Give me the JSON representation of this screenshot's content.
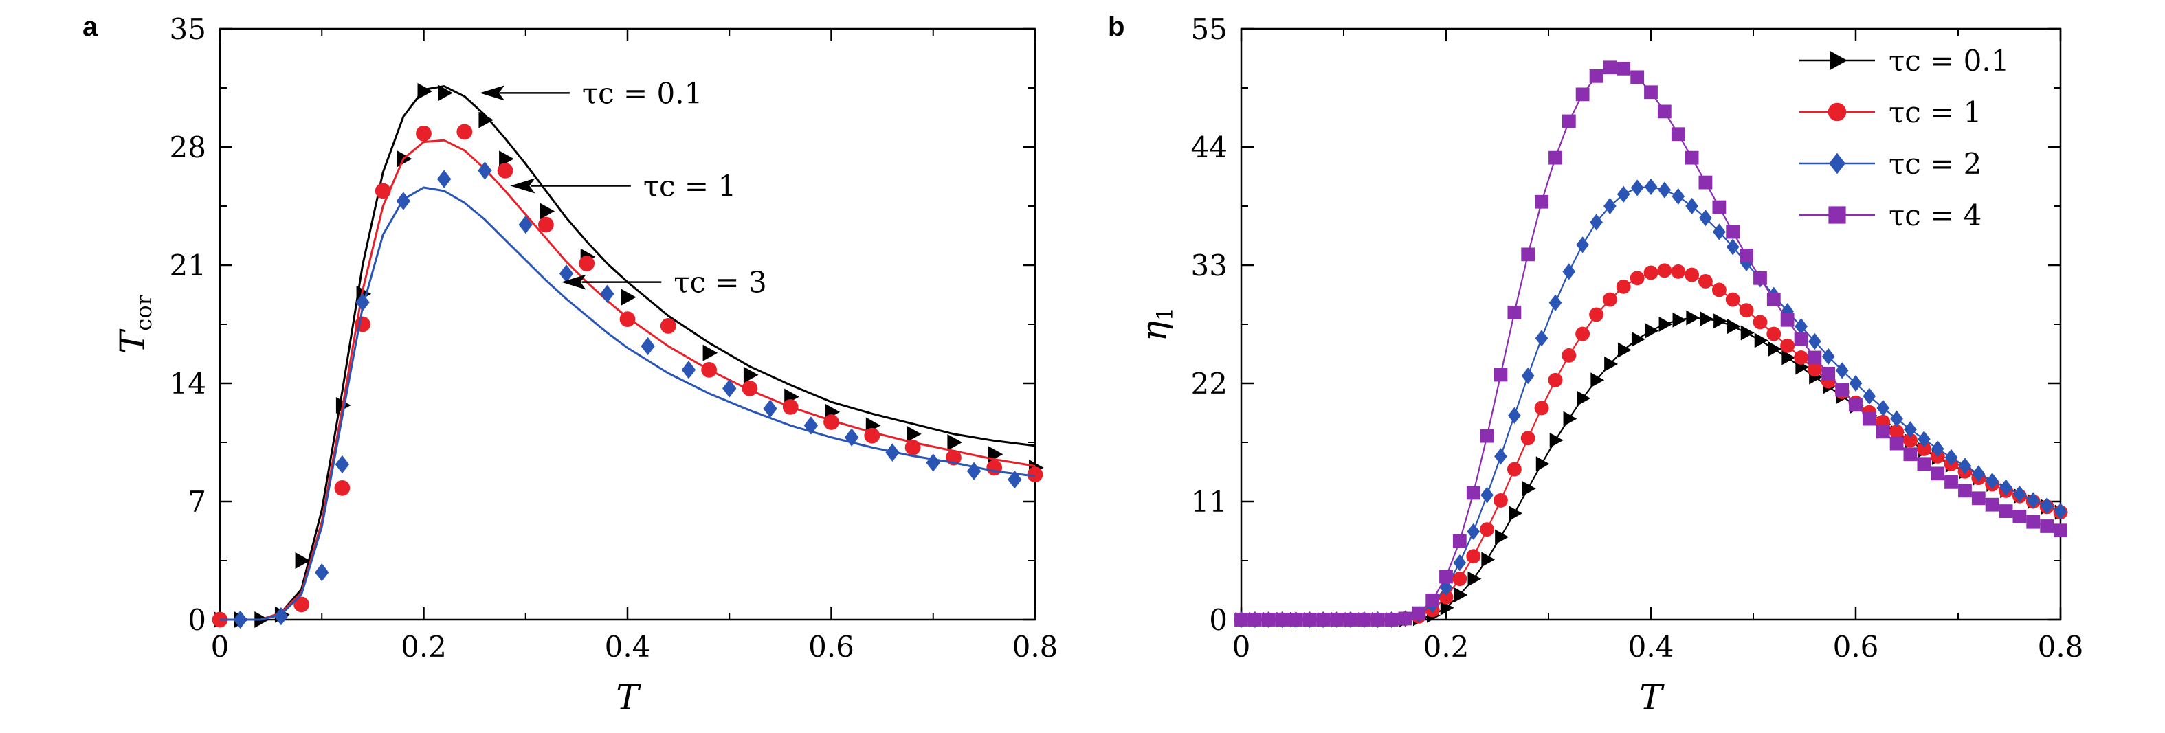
{
  "chart_data": [
    {
      "type": "line",
      "panel": "a",
      "xlabel": "T",
      "ylabel": "T",
      "ylabel_sub": "cor",
      "xlim": [
        0,
        0.8
      ],
      "ylim": [
        0,
        35
      ],
      "xticks": [
        "0",
        "0.2",
        "0.4",
        "0.6",
        "0.8"
      ],
      "yticks": [
        "0",
        "7",
        "14",
        "21",
        "28",
        "35"
      ],
      "grid": false,
      "annotations": [
        {
          "text": "τc = 0.1",
          "x": 0.255,
          "y": 31.2,
          "text_x": 0.35
        },
        {
          "text": "τc = 1",
          "x": 0.285,
          "y": 25.7,
          "text_x": 0.41
        },
        {
          "text": "τc = 3",
          "x": 0.335,
          "y": 20.0,
          "text_x": 0.44
        }
      ],
      "series": [
        {
          "color": "#000000",
          "marker": "triangle",
          "line": {
            "x": [
              0,
              0.02,
              0.04,
              0.06,
              0.08,
              0.1,
              0.12,
              0.14,
              0.16,
              0.18,
              0.2,
              0.22,
              0.24,
              0.26,
              0.28,
              0.3,
              0.32,
              0.34,
              0.36,
              0.38,
              0.4,
              0.44,
              0.48,
              0.52,
              0.56,
              0.6,
              0.64,
              0.68,
              0.72,
              0.76,
              0.8
            ],
            "y": [
              0,
              0,
              0,
              0.4,
              1.8,
              6.5,
              13.5,
              21.0,
              26.5,
              29.8,
              31.4,
              31.6,
              31.0,
              29.9,
              28.5,
              27.0,
              25.4,
              23.8,
              22.4,
              21.1,
              20.0,
              18.0,
              16.4,
              15.0,
              13.9,
              12.9,
              12.2,
              11.6,
              11.0,
              10.6,
              10.3
            ]
          },
          "markers": {
            "x": [
              0,
              0.02,
              0.04,
              0.06,
              0.08,
              0.12,
              0.14,
              0.18,
              0.2,
              0.22,
              0.26,
              0.28,
              0.32,
              0.36,
              0.4,
              0.48,
              0.52,
              0.56,
              0.6,
              0.64,
              0.68,
              0.72,
              0.76,
              0.8
            ],
            "y": [
              0,
              0,
              0,
              0.3,
              3.5,
              12.7,
              19.3,
              27.3,
              31.3,
              31.2,
              29.6,
              27.3,
              24.2,
              21.5,
              19.1,
              15.8,
              14.5,
              13.2,
              12.3,
              11.5,
              11.0,
              10.5,
              9.8,
              9.0
            ]
          }
        },
        {
          "color": "#e8202a",
          "marker": "circle",
          "line": {
            "x": [
              0,
              0.02,
              0.04,
              0.06,
              0.08,
              0.1,
              0.12,
              0.14,
              0.16,
              0.18,
              0.2,
              0.22,
              0.24,
              0.26,
              0.28,
              0.3,
              0.32,
              0.34,
              0.36,
              0.38,
              0.4,
              0.44,
              0.48,
              0.52,
              0.56,
              0.6,
              0.64,
              0.68,
              0.72,
              0.76,
              0.8
            ],
            "y": [
              0,
              0,
              0,
              0.4,
              1.6,
              5.8,
              12.5,
              19.5,
              24.5,
              27.3,
              28.3,
              28.4,
              27.8,
              26.7,
              25.4,
              24.0,
              22.6,
              21.2,
              20.0,
              18.9,
              17.9,
              16.2,
              14.8,
              13.6,
              12.6,
              11.8,
              11.1,
              10.5,
              10.0,
              9.5,
              9.1
            ]
          },
          "markers": {
            "x": [
              0,
              0.08,
              0.12,
              0.14,
              0.16,
              0.2,
              0.24,
              0.28,
              0.32,
              0.36,
              0.4,
              0.44,
              0.48,
              0.52,
              0.56,
              0.6,
              0.64,
              0.68,
              0.72,
              0.76,
              0.8
            ],
            "y": [
              0,
              0.9,
              7.8,
              17.5,
              25.4,
              28.8,
              28.9,
              26.6,
              23.4,
              21.1,
              17.8,
              17.4,
              14.8,
              13.7,
              12.6,
              11.7,
              10.9,
              10.2,
              9.6,
              9.0,
              8.6
            ]
          }
        },
        {
          "color": "#2a55b4",
          "marker": "diamond",
          "line": {
            "x": [
              0,
              0.02,
              0.04,
              0.06,
              0.08,
              0.1,
              0.12,
              0.14,
              0.16,
              0.18,
              0.2,
              0.22,
              0.24,
              0.26,
              0.28,
              0.3,
              0.32,
              0.34,
              0.36,
              0.38,
              0.4,
              0.44,
              0.48,
              0.52,
              0.56,
              0.6,
              0.64,
              0.68,
              0.72,
              0.76,
              0.8
            ],
            "y": [
              0,
              0,
              0,
              0.3,
              1.5,
              5.5,
              12.0,
              18.5,
              22.8,
              24.9,
              25.6,
              25.4,
              24.7,
              23.7,
              22.5,
              21.3,
              20.1,
              19.0,
              18.0,
              17.0,
              16.1,
              14.6,
              13.4,
              12.4,
              11.5,
              10.8,
              10.2,
              9.7,
              9.3,
              8.8,
              8.5
            ]
          },
          "markers": {
            "x": [
              0.02,
              0.06,
              0.1,
              0.12,
              0.14,
              0.18,
              0.22,
              0.26,
              0.3,
              0.34,
              0.38,
              0.42,
              0.46,
              0.5,
              0.54,
              0.58,
              0.62,
              0.66,
              0.7,
              0.74,
              0.78
            ],
            "y": [
              0,
              0.2,
              2.8,
              9.2,
              18.8,
              24.8,
              26.1,
              26.6,
              23.4,
              20.5,
              19.3,
              16.2,
              14.8,
              13.7,
              12.5,
              11.5,
              10.8,
              9.9,
              9.3,
              8.8,
              8.3
            ]
          }
        }
      ]
    },
    {
      "type": "line",
      "panel": "b",
      "xlabel": "T",
      "ylabel": "η",
      "ylabel_sub": "1",
      "xlim": [
        0,
        0.8
      ],
      "ylim": [
        0,
        55
      ],
      "xticks": [
        "0",
        "0.2",
        "0.4",
        "0.6",
        "0.8"
      ],
      "yticks": [
        "0",
        "11",
        "22",
        "33",
        "44",
        "55"
      ],
      "grid": false,
      "legend_position": "top-right",
      "series": [
        {
          "name": "τc = 0.1",
          "color": "#000000",
          "marker": "triangle",
          "x": [
            0,
            0.0133,
            0.0267,
            0.04,
            0.0533,
            0.0667,
            0.08,
            0.0933,
            0.1067,
            0.12,
            0.1333,
            0.1467,
            0.16,
            0.1733,
            0.1867,
            0.2,
            0.2133,
            0.2267,
            0.24,
            0.2533,
            0.2667,
            0.28,
            0.2933,
            0.3067,
            0.32,
            0.3333,
            0.3467,
            0.36,
            0.3733,
            0.3867,
            0.4,
            0.4133,
            0.4267,
            0.44,
            0.4533,
            0.4667,
            0.48,
            0.4933,
            0.5067,
            0.52,
            0.5333,
            0.5467,
            0.56,
            0.5733,
            0.5867,
            0.6,
            0.6133,
            0.6267,
            0.64,
            0.6533,
            0.6667,
            0.68,
            0.6933,
            0.7067,
            0.72,
            0.7333,
            0.7467,
            0.76,
            0.7733,
            0.7867,
            0.8
          ],
          "y": [
            0,
            0,
            0,
            0,
            0,
            0,
            0,
            0,
            0,
            0,
            0,
            0,
            0,
            0.1,
            0.4,
            1.1,
            2.3,
            3.8,
            5.6,
            7.7,
            9.9,
            12.2,
            14.5,
            16.7,
            18.7,
            20.6,
            22.3,
            23.8,
            25.1,
            26.1,
            26.9,
            27.5,
            27.9,
            28.1,
            28.0,
            27.8,
            27.3,
            26.7,
            26.0,
            25.2,
            24.4,
            23.5,
            22.6,
            21.7,
            20.8,
            19.9,
            19.0,
            18.2,
            17.4,
            16.6,
            15.8,
            15.1,
            14.4,
            13.8,
            13.2,
            12.6,
            12.0,
            11.5,
            11.0,
            10.5,
            10.0
          ]
        },
        {
          "name": "τc = 1",
          "color": "#e8202a",
          "marker": "circle",
          "x": [
            0,
            0.0133,
            0.0267,
            0.04,
            0.0533,
            0.0667,
            0.08,
            0.0933,
            0.1067,
            0.12,
            0.1333,
            0.1467,
            0.16,
            0.1733,
            0.1867,
            0.2,
            0.2133,
            0.2267,
            0.24,
            0.2533,
            0.2667,
            0.28,
            0.2933,
            0.3067,
            0.32,
            0.3333,
            0.3467,
            0.36,
            0.3733,
            0.3867,
            0.4,
            0.4133,
            0.4267,
            0.44,
            0.4533,
            0.4667,
            0.48,
            0.4933,
            0.5067,
            0.52,
            0.5333,
            0.5467,
            0.56,
            0.5733,
            0.5867,
            0.6,
            0.6133,
            0.6267,
            0.64,
            0.6533,
            0.6667,
            0.68,
            0.6933,
            0.7067,
            0.72,
            0.7333,
            0.7467,
            0.76,
            0.7733,
            0.7867,
            0.8
          ],
          "y": [
            0,
            0,
            0,
            0,
            0,
            0,
            0,
            0,
            0,
            0,
            0,
            0,
            0.1,
            0.3,
            0.9,
            2.1,
            3.8,
            5.9,
            8.4,
            11.1,
            14.0,
            16.9,
            19.7,
            22.3,
            24.6,
            26.6,
            28.4,
            29.8,
            31.0,
            31.8,
            32.3,
            32.5,
            32.4,
            32.1,
            31.5,
            30.7,
            29.8,
            28.8,
            27.7,
            26.6,
            25.5,
            24.4,
            23.3,
            22.2,
            21.2,
            20.2,
            19.3,
            18.4,
            17.5,
            16.7,
            15.9,
            15.2,
            14.5,
            13.8,
            13.2,
            12.6,
            12.0,
            11.5,
            11.0,
            10.5,
            10.0
          ]
        },
        {
          "name": "τc = 2",
          "color": "#2a55b4",
          "marker": "diamond",
          "x": [
            0,
            0.0133,
            0.0267,
            0.04,
            0.0533,
            0.0667,
            0.08,
            0.0933,
            0.1067,
            0.12,
            0.1333,
            0.1467,
            0.16,
            0.1733,
            0.1867,
            0.2,
            0.2133,
            0.2267,
            0.24,
            0.2533,
            0.2667,
            0.28,
            0.2933,
            0.3067,
            0.32,
            0.3333,
            0.3467,
            0.36,
            0.3733,
            0.3867,
            0.4,
            0.4133,
            0.4267,
            0.44,
            0.4533,
            0.4667,
            0.48,
            0.4933,
            0.5067,
            0.52,
            0.5333,
            0.5467,
            0.56,
            0.5733,
            0.5867,
            0.6,
            0.6133,
            0.6267,
            0.64,
            0.6533,
            0.6667,
            0.68,
            0.6933,
            0.7067,
            0.72,
            0.7333,
            0.7467,
            0.76,
            0.7733,
            0.7867,
            0.8
          ],
          "y": [
            0,
            0,
            0,
            0,
            0,
            0,
            0,
            0,
            0,
            0,
            0,
            0,
            0.1,
            0.5,
            1.4,
            3.0,
            5.3,
            8.2,
            11.6,
            15.2,
            19.0,
            22.7,
            26.2,
            29.5,
            32.4,
            34.9,
            37.0,
            38.5,
            39.6,
            40.2,
            40.3,
            40.0,
            39.4,
            38.5,
            37.4,
            36.1,
            34.7,
            33.2,
            31.7,
            30.2,
            28.7,
            27.3,
            25.9,
            24.5,
            23.2,
            22.0,
            20.8,
            19.7,
            18.7,
            17.7,
            16.8,
            15.9,
            15.1,
            14.3,
            13.6,
            12.9,
            12.3,
            11.7,
            11.1,
            10.6,
            10.1
          ]
        },
        {
          "name": "τc = 4",
          "color": "#8b2fb0",
          "marker": "square",
          "x": [
            0,
            0.0133,
            0.0267,
            0.04,
            0.0533,
            0.0667,
            0.08,
            0.0933,
            0.1067,
            0.12,
            0.1333,
            0.1467,
            0.16,
            0.1733,
            0.1867,
            0.2,
            0.2133,
            0.2267,
            0.24,
            0.2533,
            0.2667,
            0.28,
            0.2933,
            0.3067,
            0.32,
            0.3333,
            0.3467,
            0.36,
            0.3733,
            0.3867,
            0.4,
            0.4133,
            0.4267,
            0.44,
            0.4533,
            0.4667,
            0.48,
            0.4933,
            0.5067,
            0.52,
            0.5333,
            0.5467,
            0.56,
            0.5733,
            0.5867,
            0.6,
            0.6133,
            0.6267,
            0.64,
            0.6533,
            0.6667,
            0.68,
            0.6933,
            0.7067,
            0.72,
            0.7333,
            0.7467,
            0.76,
            0.7733,
            0.7867,
            0.8
          ],
          "y": [
            0,
            0,
            0,
            0,
            0,
            0,
            0,
            0,
            0,
            0,
            0,
            0,
            0.1,
            0.6,
            1.8,
            4.0,
            7.3,
            11.8,
            17.1,
            22.8,
            28.6,
            34.0,
            38.9,
            43.0,
            46.4,
            48.9,
            50.6,
            51.4,
            51.3,
            50.5,
            49.1,
            47.3,
            45.2,
            43.0,
            40.7,
            38.4,
            36.1,
            33.9,
            31.8,
            29.8,
            27.9,
            26.1,
            24.4,
            22.9,
            21.4,
            20.0,
            18.7,
            17.5,
            16.4,
            15.4,
            14.5,
            13.6,
            12.8,
            12.0,
            11.3,
            10.7,
            10.1,
            9.6,
            9.1,
            8.7,
            8.3
          ]
        }
      ]
    }
  ],
  "colors": {
    "black": "#000000",
    "red": "#e8202a",
    "blue": "#2a55b4",
    "purple": "#8b2fb0"
  }
}
